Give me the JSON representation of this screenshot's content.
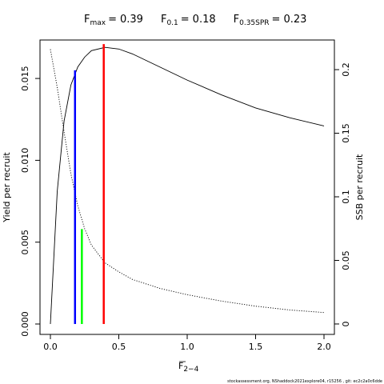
{
  "chart_data": {
    "type": "line",
    "annotations": [
      {
        "label": "F",
        "sub": "max",
        "sep": "=",
        "value": 0.39
      },
      {
        "label": "F",
        "sub": "0.1",
        "sep": "=",
        "value": 0.18
      },
      {
        "label": "F",
        "sub": "0.35SPR",
        "sep": "=",
        "value": 0.23
      }
    ],
    "xlabel": {
      "label": "F",
      "sub": "2−4"
    },
    "ylabel": "Yield per recruit",
    "y2label": "SSB per recruit",
    "footer": "stockassessment.org, NShaddock2021explore04, r15256 , git: ec2c2a0c6dde",
    "x": [
      0,
      0.05,
      0.1,
      0.15,
      0.2,
      0.25,
      0.3,
      0.4,
      0.5,
      0.6,
      0.8,
      1.0,
      1.25,
      1.5,
      1.75,
      2.0
    ],
    "series": [
      {
        "name": "Yield per recruit",
        "color": "#000000",
        "style": "solid",
        "values": [
          0,
          0.0081,
          0.0124,
          0.0146,
          0.0157,
          0.0163,
          0.0167,
          0.0169,
          0.0168,
          0.0165,
          0.0157,
          0.0149,
          0.014,
          0.0132,
          0.0126,
          0.0121
        ]
      },
      {
        "name": "SSB per recruit",
        "color": "#000000",
        "style": "dotted",
        "axis": "y2",
        "values": [
          0.216,
          0.186,
          0.151,
          0.118,
          0.093,
          0.075,
          0.062,
          0.048,
          0.041,
          0.035,
          0.028,
          0.023,
          0.018,
          0.014,
          0.011,
          0.009
        ]
      }
    ],
    "vlines": [
      {
        "x": 0.18,
        "top": 0.0155,
        "color": "#0000ff"
      },
      {
        "x": 0.23,
        "top": 0.0058,
        "color": "#00ff00"
      },
      {
        "x": 0.39,
        "top": 0.0171,
        "color": "#ff0000"
      }
    ],
    "xlim": [
      -0.076,
      2.076
    ],
    "xticks": [
      {
        "value": 0,
        "label": "0.0"
      },
      0.5,
      {
        "value": 1,
        "label": "1.0"
      },
      1.5,
      {
        "value": 2,
        "label": "2.0"
      }
    ],
    "ylim": [
      -0.000635,
      0.01735
    ],
    "yticks": [
      {
        "value": 0,
        "label": "0.000"
      },
      {
        "value": 0.005,
        "label": "0.005"
      },
      {
        "value": 0.01,
        "label": "0.010"
      },
      {
        "value": 0.015,
        "label": "0.015"
      }
    ],
    "y2lim": [
      -0.0082,
      0.2233
    ],
    "y2ticks": [
      0,
      0.05,
      0.1,
      0.15,
      0.2
    ]
  }
}
